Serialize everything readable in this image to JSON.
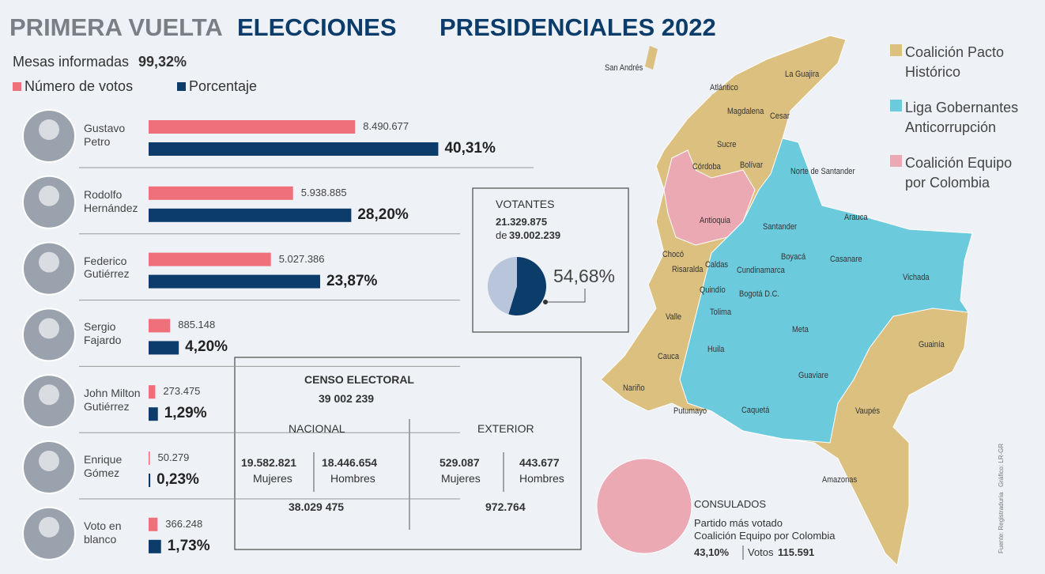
{
  "header": {
    "title_part1": "PRIMERA VUELTA",
    "title_part2": "ELECCIONES",
    "title_part3": "PRESIDENCIALES 2022",
    "mesas_label": "Mesas informadas",
    "mesas_value": "99,32%"
  },
  "chart_data": [
    {
      "type": "bar",
      "orientation": "horizontal",
      "categories": [
        "Gustavo\nPetro",
        "Rodolfo\nHernández",
        "Federico\nGutiérrez",
        "Sergio\nFajardo",
        "John Milton\nGutiérrez",
        "Enrique\nGómez",
        "Voto en\nblanco"
      ],
      "series": [
        {
          "name": "Número de votos",
          "color": "#ef6f7b",
          "values": [
            8490677,
            5938885,
            5027386,
            885148,
            273475,
            50279,
            366248
          ],
          "value_labels": [
            "8.490.677",
            "5.938.885",
            "5.027.386",
            "885.148",
            "273.475",
            "50.279",
            "366.248"
          ]
        },
        {
          "name": "Porcentaje",
          "color": "#0b3c6a",
          "axis": "y2",
          "values": [
            40.31,
            28.2,
            23.87,
            4.2,
            1.29,
            0.23,
            1.73
          ],
          "value_labels": [
            "40,31%",
            "28,20%",
            "23,87%",
            "4,20%",
            "1,29%",
            "0,23%",
            "1,73%"
          ]
        }
      ],
      "ylim": [
        0,
        13000000
      ],
      "y2lim": [
        0,
        44
      ]
    },
    {
      "type": "pie",
      "title": "VOTANTES",
      "voters": "21.329.875",
      "of": "de",
      "total": "39.002.239",
      "values": [
        54.68,
        45.32
      ],
      "value_labels": [
        "54,68%",
        null
      ],
      "colors": [
        "#0b3c6a",
        "#b9c5da"
      ]
    }
  ],
  "censo": {
    "title": "CENSO ELECTORAL",
    "total": "39 002 239",
    "nacional": {
      "label": "NACIONAL",
      "women": "19.582.821",
      "women_label": "Mujeres",
      "men": "18.446.654",
      "men_label": "Hombres",
      "total": "38.029 475"
    },
    "exterior": {
      "label": "EXTERIOR",
      "women": "529.087",
      "women_label": "Mujeres",
      "men": "443.677",
      "men_label": "Hombres",
      "total": "972.764"
    }
  },
  "map": {
    "legend": [
      {
        "name": "Coalición Pacto\nHistórico",
        "color": "#dcc07f"
      },
      {
        "name": "Liga Gobernantes\nAnticorrupción",
        "color": "#6ccadd"
      },
      {
        "name": "Coalición Equipo\npor Colombia",
        "color": "#eba9b3"
      }
    ],
    "departments": [
      "San Andrés",
      "La Guajira",
      "Atlántico",
      "Magdalena",
      "Cesar",
      "Sucre",
      "Córdoba",
      "Bolívar",
      "Norte de Santander",
      "Antioquia",
      "Santander",
      "Arauca",
      "Chocó",
      "Caldas",
      "Boyacá",
      "Casanare",
      "Risaralda",
      "Cundinamarca",
      "Vichada",
      "Quindío",
      "Bogotá D.C.",
      "Tolima",
      "Valle",
      "Meta",
      "Guainía",
      "Huila",
      "Cauca",
      "Guaviare",
      "Nariño",
      "Vaupés",
      "Putumayo",
      "Caquetá",
      "Amazonas"
    ]
  },
  "consulados": {
    "title": "CONSULADOS",
    "line1": "Partido más votado",
    "line2": "Coalición Equipo por Colombia",
    "percent": "43,10%",
    "votes_label": "Votos",
    "votes": "115.591"
  },
  "source": "Fuente: Registraduría   Gráfico: LR-GR"
}
